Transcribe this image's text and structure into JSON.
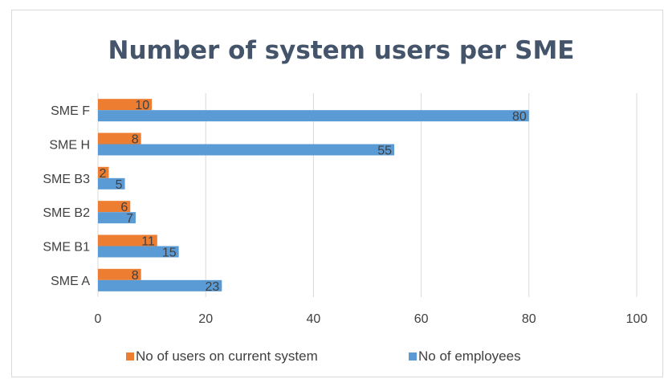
{
  "chart_data": {
    "type": "bar",
    "orientation": "horizontal",
    "title": "Number of system users per SME",
    "categories": [
      "SME A",
      "SME B1",
      "SME B2",
      "SME B3",
      "SME H",
      "SME F"
    ],
    "series": [
      {
        "name": "No of users on current system",
        "color": "#ed7d31",
        "values": [
          8,
          11,
          6,
          2,
          8,
          10
        ]
      },
      {
        "name": "No of employees",
        "color": "#5b9bd5",
        "values": [
          23,
          15,
          7,
          5,
          55,
          80
        ]
      }
    ],
    "xlim": [
      0,
      100
    ],
    "xticks": [
      0,
      20,
      40,
      60,
      80,
      100
    ],
    "grid": "vertical",
    "legend": "bottom",
    "data_labels": true
  }
}
